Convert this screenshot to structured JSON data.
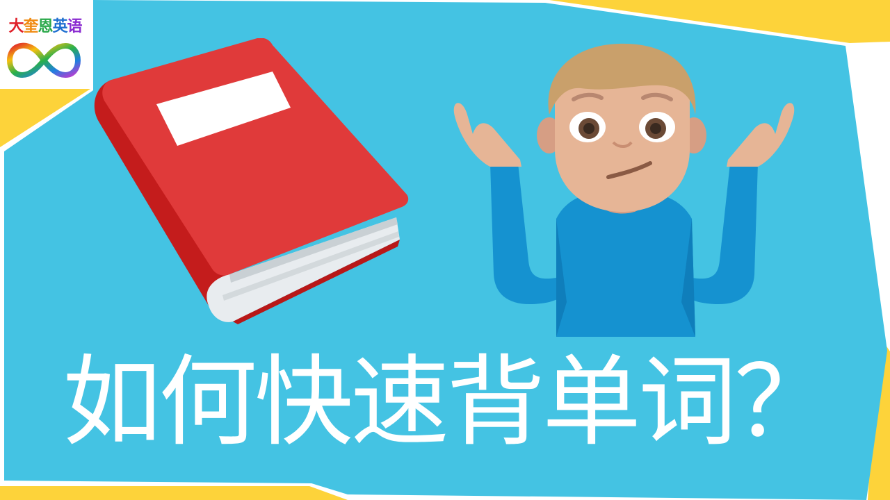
{
  "logo": {
    "chars": [
      "大",
      "奎",
      "恩",
      "英",
      "语"
    ],
    "char_colors": [
      "#e0202a",
      "#f08a10",
      "#2aa84a",
      "#1f6fd0",
      "#8a2bd0"
    ],
    "icon": "infinity-rainbow-icon"
  },
  "illustrations": {
    "book": "red-book-icon",
    "person": "person-shrugging-icon"
  },
  "title": "如何快速背单词？",
  "colors": {
    "panel": "#44c3e3",
    "frame": "#fdd33a",
    "title_text": "#ffffff",
    "book_red": "#e03a3a",
    "shirt_blue": "#1592d0"
  }
}
